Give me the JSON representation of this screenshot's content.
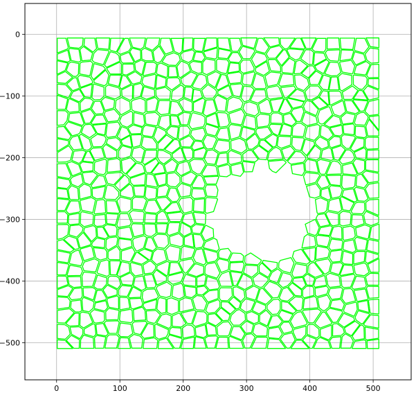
{
  "chart_data": {
    "type": "line",
    "description_marks": "cell mesh outlines",
    "xlim": [
      -50,
      560
    ],
    "ylim": [
      -560,
      50
    ],
    "x_ticks": [
      0,
      100,
      200,
      300,
      400,
      500
    ],
    "y_ticks": [
      0,
      -100,
      -200,
      -300,
      -400,
      -500
    ],
    "x_tick_labels": [
      "0",
      "100",
      "200",
      "300",
      "400",
      "500"
    ],
    "y_tick_labels": [
      "0",
      "−100",
      "−200",
      "−300",
      "−400",
      "−500"
    ],
    "grid": true,
    "series": [
      {
        "color": "#00ff00",
        "region": {
          "x": [
            0,
            510
          ],
          "y": [
            -510,
            -5
          ]
        },
        "hole": {
          "center": [
            325,
            -290
          ],
          "rx": 82,
          "ry": 75
        },
        "approx_cell_size": 20
      }
    ]
  },
  "colors": {
    "mesh": "#00ff00",
    "grid": "#b0b0b0",
    "axes": "#000000"
  }
}
